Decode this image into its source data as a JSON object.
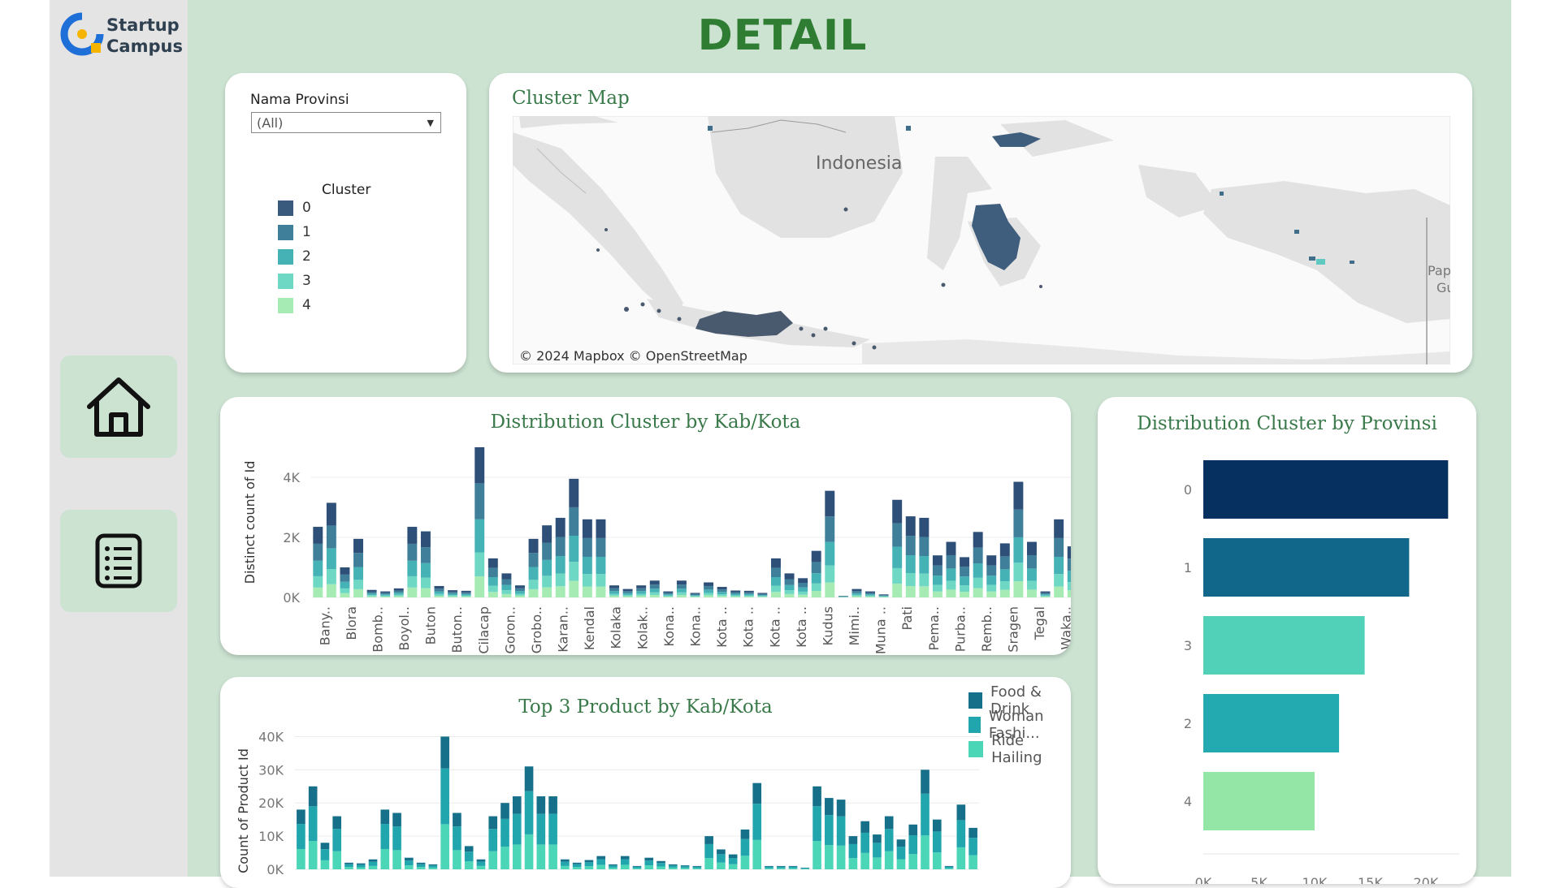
{
  "header": {
    "title": "DETAIL"
  },
  "logo": {
    "line1": "Startup",
    "line2": "Campus"
  },
  "nav": {
    "home": "home",
    "list": "list"
  },
  "filter": {
    "label": "Nama Provinsi",
    "value": "(All)"
  },
  "cluster_legend": {
    "title": "Cluster",
    "items": [
      {
        "label": "0",
        "color": "#3a5a7d"
      },
      {
        "label": "1",
        "color": "#3f7f9a"
      },
      {
        "label": "2",
        "color": "#45b2b6"
      },
      {
        "label": "3",
        "color": "#6fd8c5"
      },
      {
        "label": "4",
        "color": "#a7ebb4"
      }
    ]
  },
  "map": {
    "title": "Cluster Map",
    "labels": [
      "Indonesia",
      "Papu",
      "Gu"
    ],
    "credit": "© 2024 Mapbox  © OpenStreetMap"
  },
  "chart_data": [
    {
      "type": "bar",
      "stacked": true,
      "title": "Distribution Cluster by Kab/Kota",
      "ylabel": "Distinct count of Id",
      "xlabel": "",
      "ylim": [
        0,
        5000
      ],
      "yticks": [
        "0K",
        "2K",
        "4K"
      ],
      "ytick_values": [
        0,
        2000,
        4000
      ],
      "series_colors": [
        "#a7ebb4",
        "#6fd8c5",
        "#45b2b6",
        "#3f7f9a",
        "#2d4f78"
      ],
      "category_labels": [
        "Bany..",
        "Blora",
        "Bomb..",
        "Boyol..",
        "Buton",
        "Buton..",
        "Cilacap",
        "Goron..",
        "Grobo..",
        "Karan..",
        "Kendal",
        "Kolaka",
        "Kolak..",
        "Kona..",
        "Kona..",
        "Kota ..",
        "Kota ..",
        "Kota ..",
        "Kota ..",
        "Kudus",
        "Mimi..",
        "Muna ..",
        "Pati",
        "Pema..",
        "Purba..",
        "Remb..",
        "Sragen",
        "Tegal",
        "Waka.."
      ],
      "totals": [
        2350,
        3150,
        1000,
        1950,
        250,
        200,
        300,
        2350,
        2200,
        380,
        240,
        220,
        5000,
        1300,
        800,
        400,
        1950,
        2400,
        2650,
        3950,
        2600,
        2600,
        400,
        280,
        400,
        560,
        200,
        560,
        150,
        500,
        350,
        230,
        220,
        150,
        1300,
        800,
        640,
        1550,
        3550,
        50,
        280,
        200,
        100,
        3250,
        2700,
        2650,
        1400,
        1850,
        1340,
        2180,
        1400,
        1800,
        3850,
        1850,
        200,
        2600,
        1700
      ]
    },
    {
      "type": "bar",
      "horizontal": true,
      "title": "Distribution Cluster by Provinsi",
      "categories": [
        "0",
        "1",
        "3",
        "2",
        "4"
      ],
      "values": [
        22000,
        18500,
        14500,
        12200,
        10000
      ],
      "colors": [
        "#06305f",
        "#116789",
        "#50d1b8",
        "#22aab0",
        "#93e6a6"
      ],
      "xlim": [
        0,
        23000
      ],
      "xticks": [
        "0K",
        "5K",
        "10K",
        "15K",
        "20K"
      ],
      "xtick_values": [
        0,
        5000,
        10000,
        15000,
        20000
      ]
    },
    {
      "type": "bar",
      "stacked": true,
      "title": "Top 3 Product by Kab/Kota",
      "ylabel": "Count of Product Id",
      "ylim": [
        0,
        45000
      ],
      "yticks": [
        "0K",
        "10K",
        "20K",
        "30K",
        "40K"
      ],
      "ytick_values": [
        0,
        10000,
        20000,
        30000,
        40000
      ],
      "legend": [
        {
          "label": "Food & Drink",
          "color": "#16708a"
        },
        {
          "label": "Woman Fashi...",
          "color": "#21a6ae"
        },
        {
          "label": "Ride Hailing",
          "color": "#4bd6b8"
        }
      ],
      "totals": [
        18000,
        25000,
        8000,
        16000,
        2000,
        1800,
        3000,
        18000,
        17000,
        3500,
        2000,
        1500,
        40000,
        17000,
        7000,
        3000,
        16000,
        20000,
        22000,
        31000,
        22000,
        22000,
        3000,
        2000,
        2800,
        4000,
        1500,
        4000,
        1000,
        3500,
        2500,
        1500,
        1200,
        1000,
        10000,
        6000,
        4500,
        12000,
        26000,
        1000,
        1000,
        1000,
        500,
        25000,
        21500,
        21000,
        10000,
        14500,
        10500,
        16000,
        9000,
        13500,
        30000,
        15000,
        1000,
        19500,
        12500
      ]
    }
  ]
}
